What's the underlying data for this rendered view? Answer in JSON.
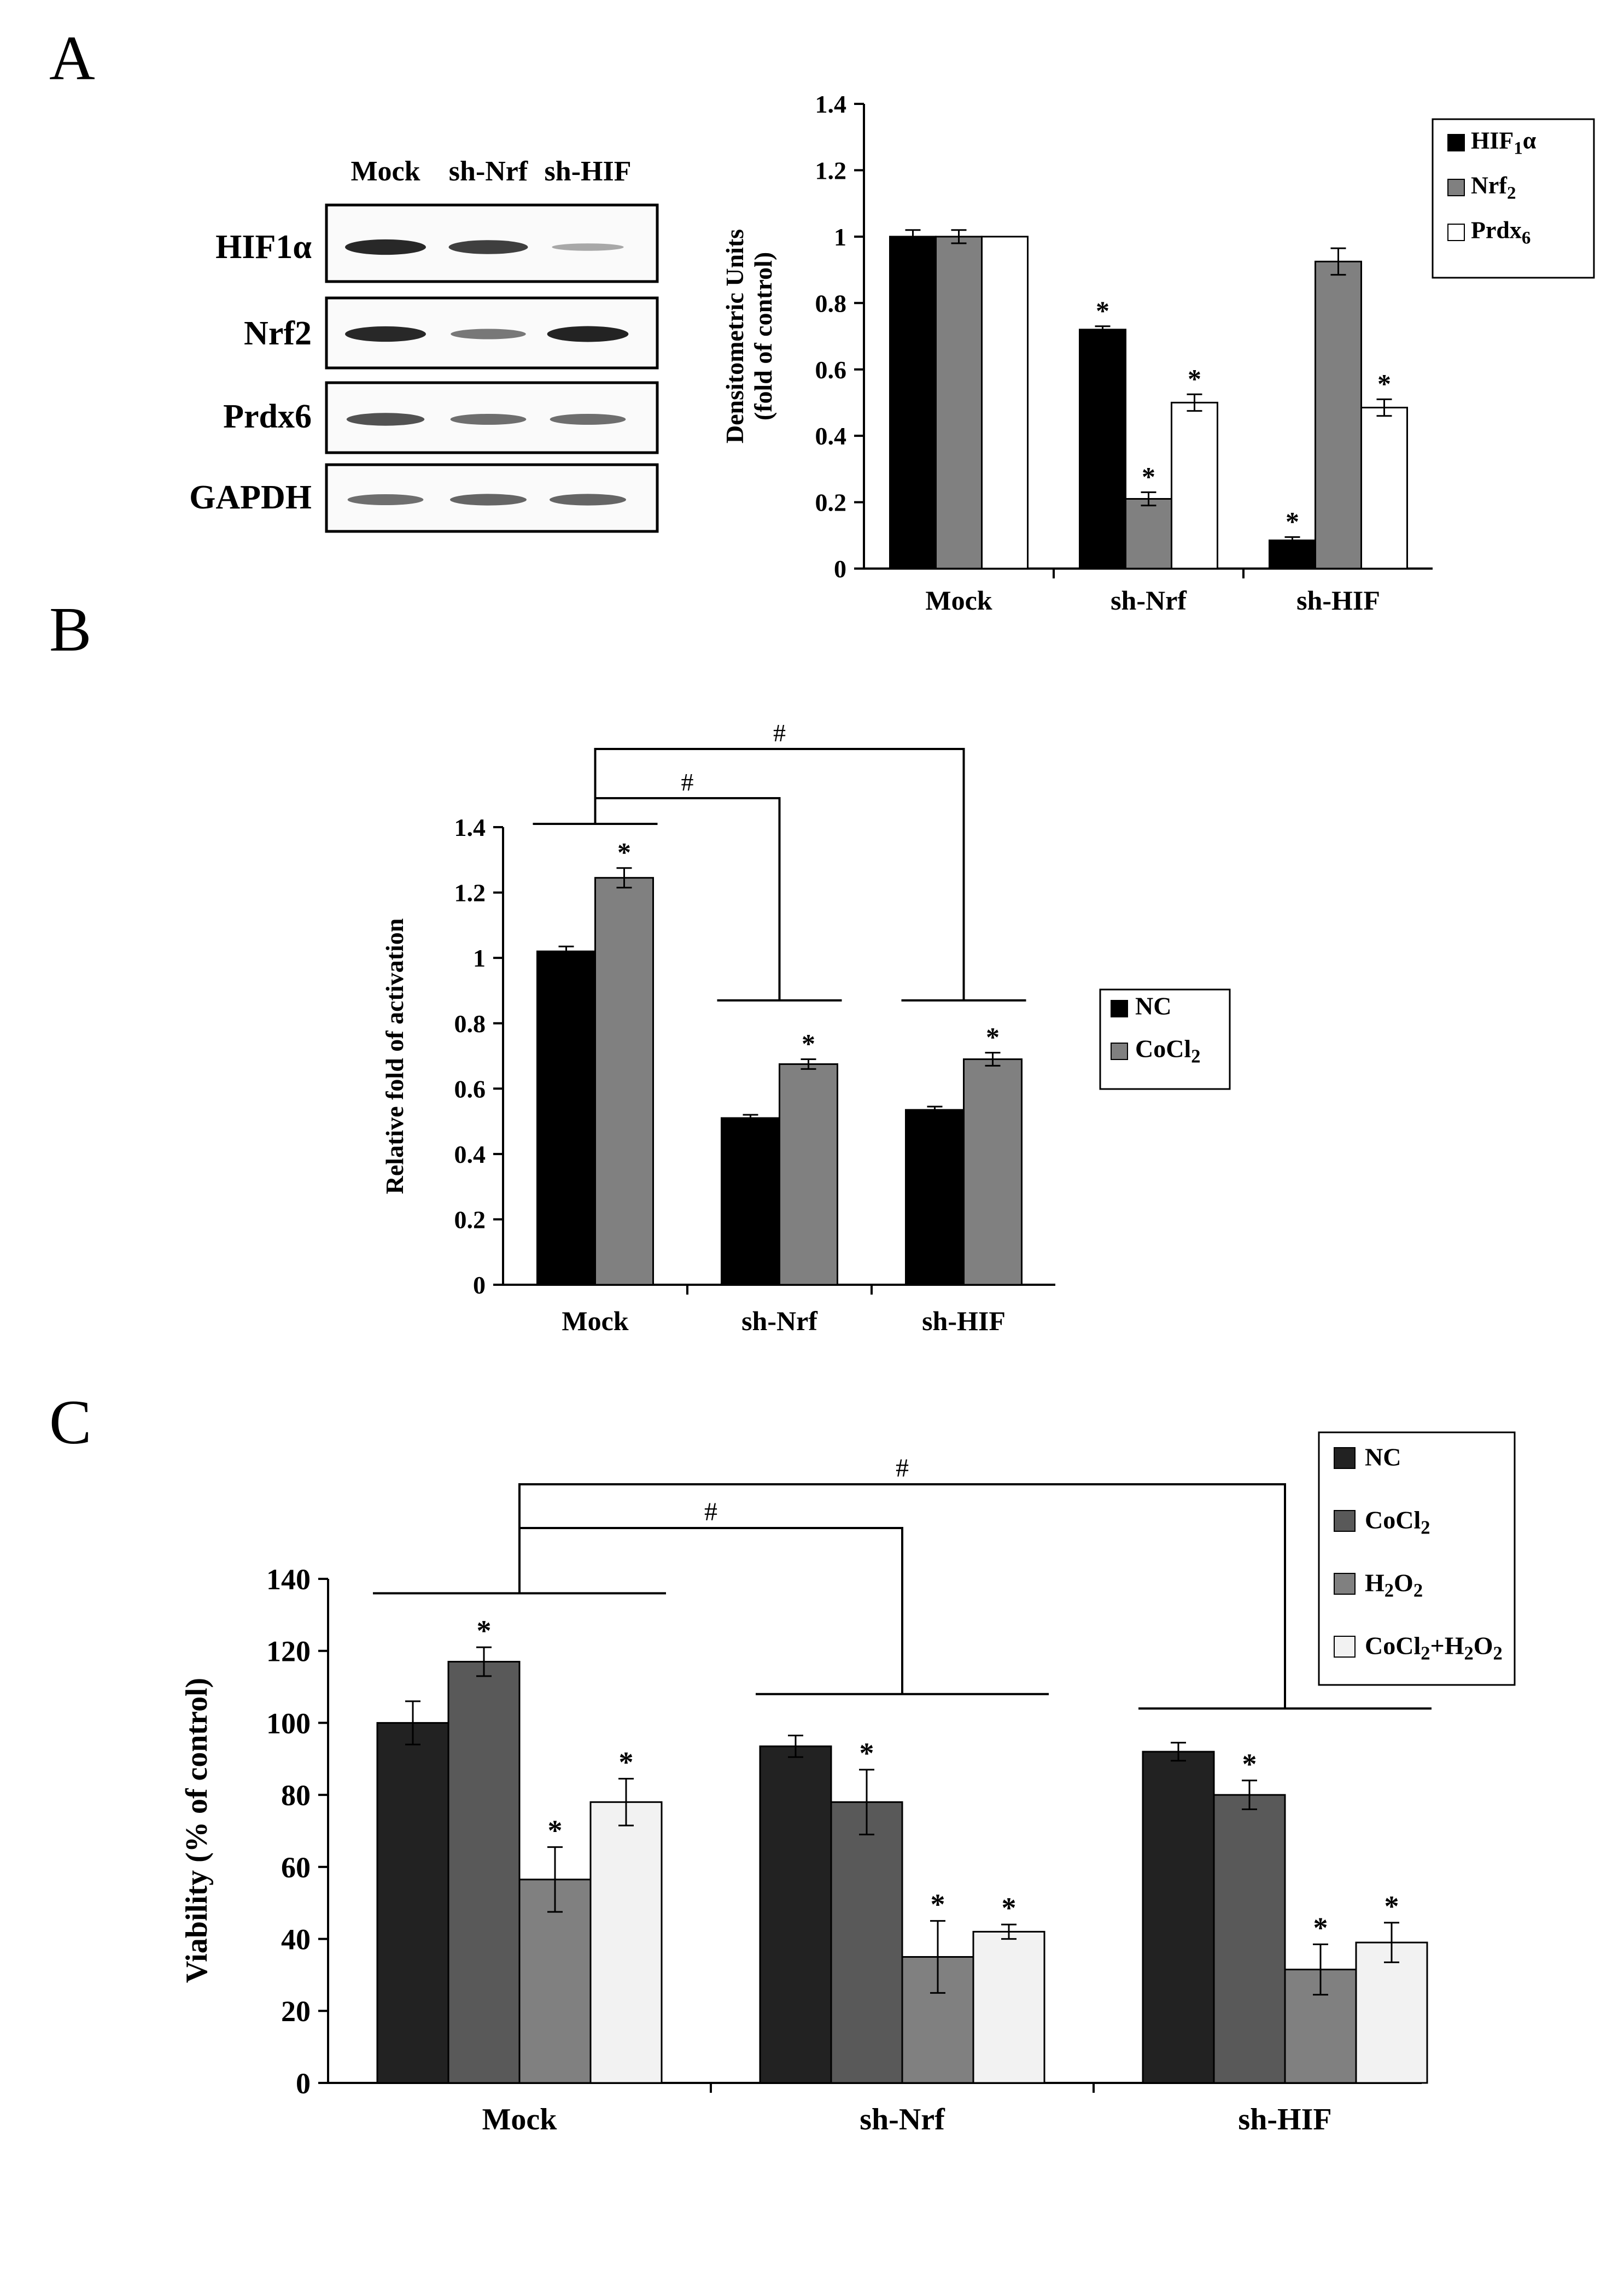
{
  "panel_labels": [
    "A",
    "B",
    "C"
  ],
  "blot": {
    "lane_labels": [
      "Mock",
      "sh-Nrf",
      "sh-HIF"
    ],
    "rows": [
      {
        "protein": "HIF1α",
        "intensity": [
          0.92,
          0.8,
          0.25
        ]
      },
      {
        "protein": "Nrf2",
        "intensity": [
          0.92,
          0.5,
          0.95
        ]
      },
      {
        "protein": "Prdx6",
        "intensity": [
          0.7,
          0.55,
          0.55
        ]
      },
      {
        "protein": "GAPDH",
        "intensity": [
          0.55,
          0.6,
          0.6
        ]
      }
    ]
  },
  "chart_data": [
    {
      "id": "A",
      "type": "bar",
      "title": "",
      "xlabel": "",
      "ylabel": [
        "Densitometric Units",
        "(fold of control)"
      ],
      "categories": [
        "Mock",
        "sh-Nrf",
        "sh-HIF"
      ],
      "ylim": [
        0,
        1.4
      ],
      "yticks": [
        0,
        0.2,
        0.4,
        0.6,
        0.8,
        1,
        1.2,
        1.4
      ],
      "ytick_labels": [
        "0",
        "0.2",
        "0.4",
        "0.6",
        "0.8",
        "1",
        "1.2",
        "1.4"
      ],
      "legend_position": "top-right",
      "series": [
        {
          "name": "HIF1α",
          "color": "#000000",
          "values": [
            1.0,
            0.72,
            0.085
          ],
          "errors": [
            0.02,
            0.01,
            0.01
          ],
          "sig": [
            "",
            "*",
            "*"
          ]
        },
        {
          "name": "Nrf2",
          "color": "#808080",
          "values": [
            1.0,
            0.21,
            0.925
          ],
          "errors": [
            0.02,
            0.02,
            0.04
          ],
          "sig": [
            "",
            "*",
            ""
          ]
        },
        {
          "name": "Prdx6",
          "color": "#ffffff",
          "values": [
            1.0,
            0.5,
            0.485
          ],
          "errors": [
            0.0,
            0.025,
            0.025
          ],
          "sig": [
            "",
            "*",
            "*"
          ]
        }
      ],
      "brackets": []
    },
    {
      "id": "B",
      "type": "bar",
      "title": "",
      "xlabel": "",
      "ylabel": [
        "Relative fold of activation"
      ],
      "categories": [
        "Mock",
        "sh-Nrf",
        "sh-HIF"
      ],
      "ylim": [
        0,
        1.4
      ],
      "yticks": [
        0,
        0.2,
        0.4,
        0.6,
        0.8,
        1,
        1.2,
        1.4
      ],
      "ytick_labels": [
        "0",
        "0.2",
        "0.4",
        "0.6",
        "0.8",
        "1",
        "1.2",
        "1.4"
      ],
      "legend_position": "right",
      "series": [
        {
          "name": "NC",
          "color": "#000000",
          "values": [
            1.02,
            0.51,
            0.535
          ],
          "errors": [
            0.015,
            0.01,
            0.01
          ],
          "sig": [
            "",
            "",
            ""
          ]
        },
        {
          "name": "CoCl2",
          "color": "#808080",
          "values": [
            1.245,
            0.675,
            0.69
          ],
          "errors": [
            0.03,
            0.015,
            0.02
          ],
          "sig": [
            "*",
            "*",
            "*"
          ]
        }
      ],
      "brackets": [
        {
          "from": 0,
          "to": 1,
          "label": "#"
        },
        {
          "from": 0,
          "to": 2,
          "label": "#"
        }
      ]
    },
    {
      "id": "C",
      "type": "bar",
      "title": "",
      "xlabel": "",
      "ylabel": [
        "Viability (% of control)"
      ],
      "categories": [
        "Mock",
        "sh-Nrf",
        "sh-HIF"
      ],
      "ylim": [
        0,
        140
      ],
      "yticks": [
        0,
        20,
        40,
        60,
        80,
        100,
        120,
        140
      ],
      "ytick_labels": [
        "0",
        "20",
        "40",
        "60",
        "80",
        "100",
        "120",
        "140"
      ],
      "legend_position": "top-right",
      "series": [
        {
          "name": "NC",
          "color": "#222222",
          "values": [
            100,
            93.5,
            92
          ],
          "errors": [
            6,
            3,
            2.5
          ],
          "sig": [
            "",
            "",
            ""
          ]
        },
        {
          "name": "CoCl2",
          "color": "#595959",
          "values": [
            117,
            78,
            80
          ],
          "errors": [
            4,
            9,
            4
          ],
          "sig": [
            "*",
            "*",
            "*"
          ]
        },
        {
          "name": "H2O2",
          "color": "#808080",
          "values": [
            56.5,
            35,
            31.5
          ],
          "errors": [
            9,
            10,
            7
          ],
          "sig": [
            "*",
            "*",
            "*"
          ]
        },
        {
          "name": "CoCl2+H2O2",
          "color": "#f2f2f2",
          "values": [
            78,
            42,
            39
          ],
          "errors": [
            6.5,
            2,
            5.5
          ],
          "sig": [
            "*",
            "*",
            "*"
          ]
        }
      ],
      "brackets": [
        {
          "from": 0,
          "to": 1,
          "label": "#"
        },
        {
          "from": 0,
          "to": 2,
          "label": "#"
        }
      ]
    }
  ]
}
